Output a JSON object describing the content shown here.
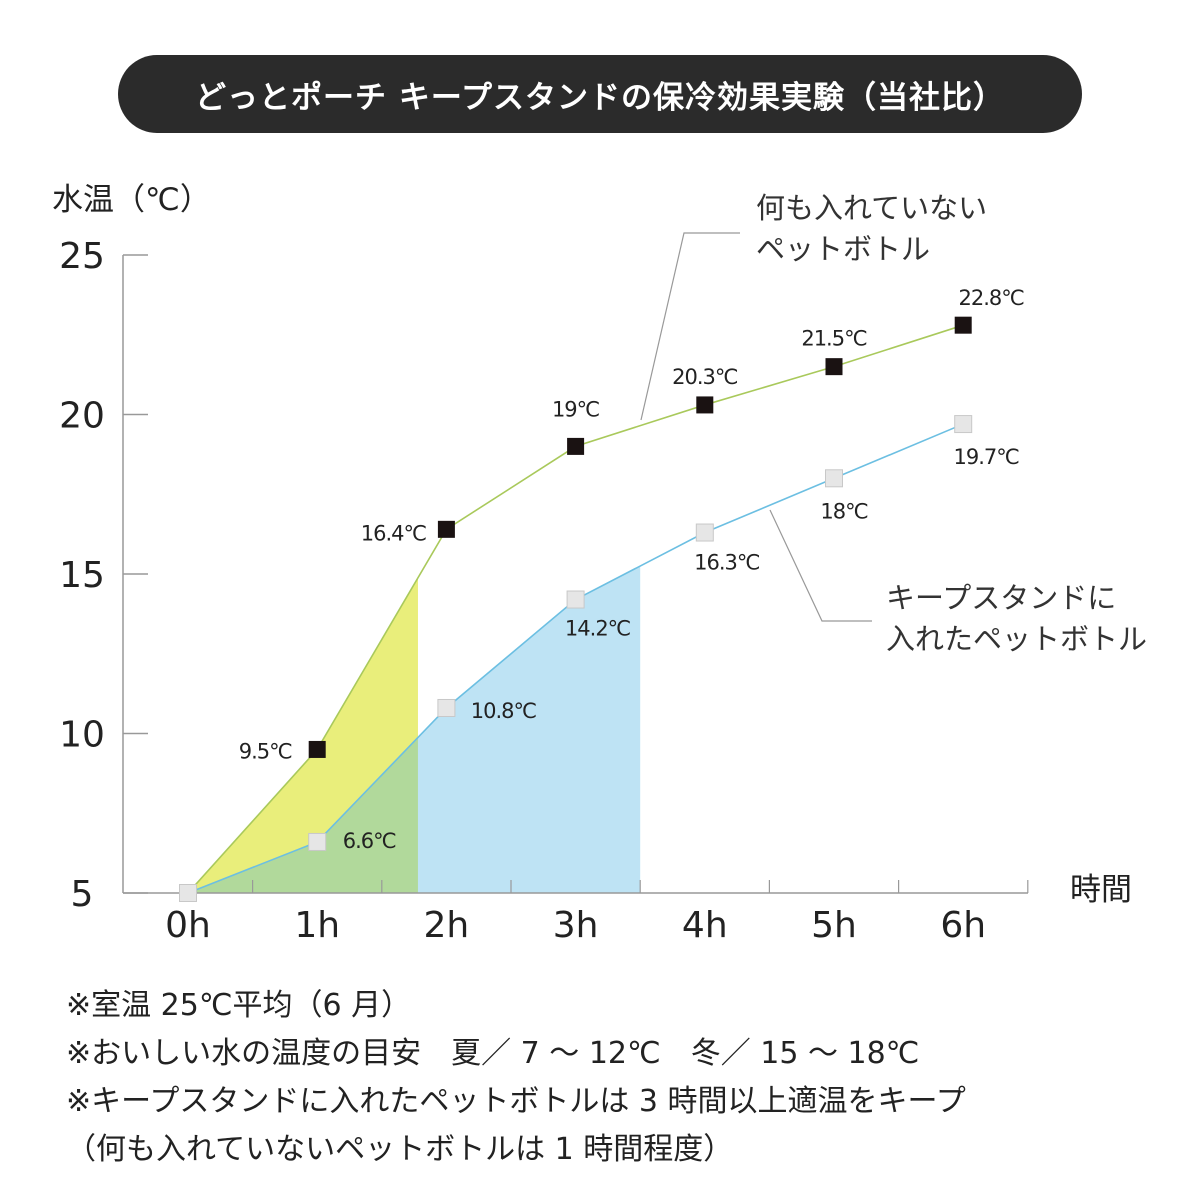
{
  "title": "どっとポーチ キープスタンドの保冷効果実験（当社比）",
  "chart_data": {
    "type": "line",
    "ylabel": "水温（℃）",
    "xlabel": "時間",
    "categories": [
      "0h",
      "1h",
      "2h",
      "3h",
      "4h",
      "5h",
      "6h"
    ],
    "x": [
      0,
      1,
      2,
      3,
      4,
      5,
      6
    ],
    "ylim": [
      5,
      25
    ],
    "yticks": [
      5,
      10,
      15,
      20,
      25
    ],
    "grid": false,
    "series": [
      {
        "name": "何も入れていないペットボトル",
        "label_lines": [
          "何も入れていない",
          "ペットボトル"
        ],
        "values": [
          5,
          9.5,
          16.4,
          19,
          20.3,
          21.5,
          22.8
        ],
        "data_labels": [
          null,
          "9.5℃",
          "16.4℃",
          "19℃",
          "20.3℃",
          "21.5℃",
          "22.8℃"
        ],
        "line_color": "#a9c95b",
        "marker_color": "#1a1212",
        "marker": "filled-square"
      },
      {
        "name": "キープスタンドに入れたペットボトル",
        "label_lines": [
          "キープスタンドに",
          "入れたペットボトル"
        ],
        "values": [
          5,
          6.6,
          10.8,
          14.2,
          16.3,
          18,
          19.7
        ],
        "data_labels": [
          null,
          "6.6℃",
          "10.8℃",
          "14.2℃",
          "16.3℃",
          "18℃",
          "19.7℃"
        ],
        "line_color": "#6cbfe2",
        "marker_color": "#e6e6e6",
        "marker": "light-square"
      }
    ],
    "shaded_regions": [
      {
        "between": "series-gap",
        "from_h": 0,
        "to_h": 1.78,
        "color": "#e9ee7b"
      },
      {
        "between": "under-series-2",
        "from_h": 0,
        "to_h": 1.78,
        "color": "#b1d99b"
      },
      {
        "between": "under-series-2",
        "from_h": 1.78,
        "to_h": 3.5,
        "color": "#bee3f4"
      }
    ]
  },
  "notes": [
    "※室温 25℃平均（6 月）",
    "※おいしい水の温度の目安　夏／ 7 ～ 12℃　冬／ 15 ～ 18℃",
    "※キープスタンドに入れたペットボトルは 3 時間以上適温をキープ",
    "（何も入れていないペットボトルは 1 時間程度）"
  ]
}
